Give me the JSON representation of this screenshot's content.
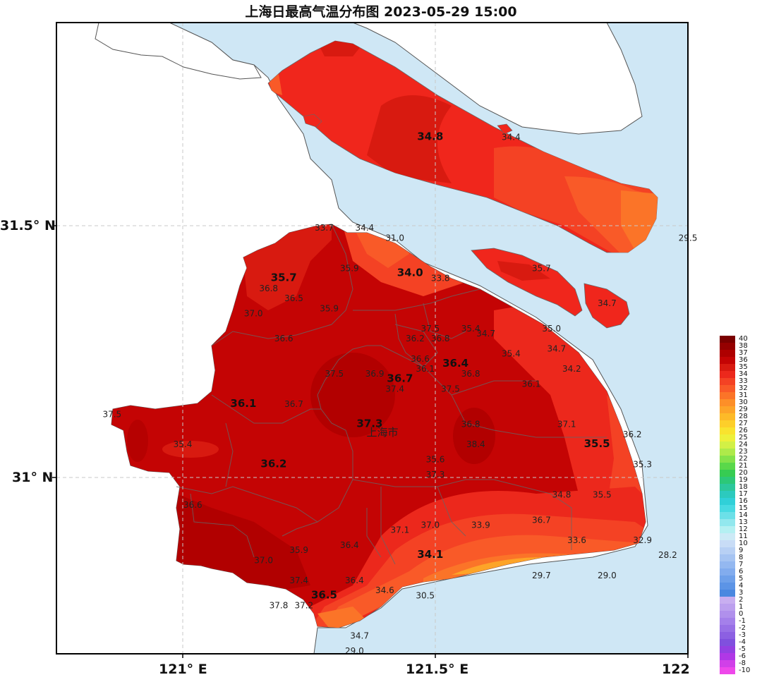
{
  "title": "上海日最高气温分布图 2023-05-29 15:00",
  "axes": {
    "lat_labels": [
      "31.5° N",
      "31° N"
    ],
    "lon_labels": [
      "121° E",
      "121.5° E",
      "122"
    ]
  },
  "city_label": "上海市",
  "stations": [
    {
      "v": "34.8",
      "big": true,
      "lon": 121.49,
      "lat": 31.67
    },
    {
      "v": "34.4",
      "lon": 121.65,
      "lat": 31.67
    },
    {
      "v": "33.7",
      "lon": 121.28,
      "lat": 31.49
    },
    {
      "v": "34.4",
      "lon": 121.36,
      "lat": 31.49
    },
    {
      "v": "31.0",
      "lon": 121.42,
      "lat": 31.47
    },
    {
      "v": "29.5",
      "lon": 122.0,
      "lat": 31.47
    },
    {
      "v": "35.9",
      "lon": 121.33,
      "lat": 31.41
    },
    {
      "v": "34.0",
      "big": true,
      "lon": 121.45,
      "lat": 31.4
    },
    {
      "v": "33.8",
      "lon": 121.51,
      "lat": 31.39
    },
    {
      "v": "35.7",
      "lon": 121.71,
      "lat": 31.41
    },
    {
      "v": "35.7",
      "big": true,
      "lon": 121.2,
      "lat": 31.39
    },
    {
      "v": "36.8",
      "lon": 121.17,
      "lat": 31.37
    },
    {
      "v": "36.5",
      "lon": 121.22,
      "lat": 31.35
    },
    {
      "v": "35.9",
      "lon": 121.29,
      "lat": 31.33
    },
    {
      "v": "34.7",
      "lon": 121.84,
      "lat": 31.34
    },
    {
      "v": "37.0",
      "lon": 121.14,
      "lat": 31.32
    },
    {
      "v": "37.5",
      "lon": 121.49,
      "lat": 31.29
    },
    {
      "v": "35.4",
      "lon": 121.57,
      "lat": 31.29
    },
    {
      "v": "35.0",
      "lon": 121.73,
      "lat": 31.29
    },
    {
      "v": "36.2",
      "lon": 121.46,
      "lat": 31.27
    },
    {
      "v": "36.8",
      "lon": 121.51,
      "lat": 31.27
    },
    {
      "v": "34.7",
      "lon": 121.6,
      "lat": 31.28
    },
    {
      "v": "36.6",
      "lon": 121.2,
      "lat": 31.27
    },
    {
      "v": "34.7",
      "lon": 121.74,
      "lat": 31.25
    },
    {
      "v": "35.4",
      "lon": 121.65,
      "lat": 31.24
    },
    {
      "v": "36.6",
      "lon": 121.47,
      "lat": 31.23
    },
    {
      "v": "36.4",
      "big": true,
      "lon": 121.54,
      "lat": 31.22
    },
    {
      "v": "34.2",
      "lon": 121.77,
      "lat": 31.21
    },
    {
      "v": "36.1",
      "lon": 121.48,
      "lat": 31.21
    },
    {
      "v": "36.8",
      "lon": 121.57,
      "lat": 31.2
    },
    {
      "v": "37.5",
      "lon": 121.3,
      "lat": 31.2
    },
    {
      "v": "36.9",
      "lon": 121.38,
      "lat": 31.2
    },
    {
      "v": "36.7",
      "big": true,
      "lon": 121.43,
      "lat": 31.19
    },
    {
      "v": "36.1",
      "lon": 121.69,
      "lat": 31.18
    },
    {
      "v": "37.5",
      "lon": 121.53,
      "lat": 31.17
    },
    {
      "v": "37.4",
      "lon": 121.42,
      "lat": 31.17
    },
    {
      "v": "36.1",
      "big": true,
      "lon": 121.12,
      "lat": 31.14
    },
    {
      "v": "36.7",
      "lon": 121.22,
      "lat": 31.14
    },
    {
      "v": "37.5",
      "lon": 120.86,
      "lat": 31.12
    },
    {
      "v": "37.3",
      "big": true,
      "lon": 121.37,
      "lat": 31.1
    },
    {
      "v": "36.8",
      "lon": 121.57,
      "lat": 31.1
    },
    {
      "v": "37.1",
      "lon": 121.76,
      "lat": 31.1
    },
    {
      "v": "38.4",
      "lon": 121.58,
      "lat": 31.06
    },
    {
      "v": "35.5",
      "big": true,
      "lon": 121.82,
      "lat": 31.06
    },
    {
      "v": "36.2",
      "lon": 121.89,
      "lat": 31.08
    },
    {
      "v": "35.4",
      "lon": 121.0,
      "lat": 31.06
    },
    {
      "v": "35.6",
      "lon": 121.5,
      "lat": 31.03
    },
    {
      "v": "36.2",
      "big": true,
      "lon": 121.18,
      "lat": 31.02
    },
    {
      "v": "35.3",
      "lon": 121.91,
      "lat": 31.02
    },
    {
      "v": "37.3",
      "lon": 121.5,
      "lat": 31.0
    },
    {
      "v": "34.8",
      "lon": 121.75,
      "lat": 30.96
    },
    {
      "v": "35.5",
      "lon": 121.83,
      "lat": 30.96
    },
    {
      "v": "36.6",
      "lon": 121.02,
      "lat": 30.94
    },
    {
      "v": "36.7",
      "lon": 121.71,
      "lat": 30.91
    },
    {
      "v": "33.9",
      "lon": 121.59,
      "lat": 30.9
    },
    {
      "v": "37.0",
      "lon": 121.49,
      "lat": 30.9
    },
    {
      "v": "37.1",
      "lon": 121.43,
      "lat": 30.89
    },
    {
      "v": "33.6",
      "lon": 121.78,
      "lat": 30.87
    },
    {
      "v": "32.9",
      "lon": 121.91,
      "lat": 30.87
    },
    {
      "v": "35.9",
      "lon": 121.23,
      "lat": 30.85
    },
    {
      "v": "36.4",
      "lon": 121.33,
      "lat": 30.86
    },
    {
      "v": "34.1",
      "big": true,
      "lon": 121.49,
      "lat": 30.84
    },
    {
      "v": "28.2",
      "lon": 121.96,
      "lat": 30.84
    },
    {
      "v": "37.0",
      "lon": 121.16,
      "lat": 30.83
    },
    {
      "v": "29.7",
      "lon": 121.71,
      "lat": 30.8
    },
    {
      "v": "29.0",
      "lon": 121.84,
      "lat": 30.8
    },
    {
      "v": "36.4",
      "lon": 121.34,
      "lat": 30.79
    },
    {
      "v": "37.4",
      "lon": 121.23,
      "lat": 30.79
    },
    {
      "v": "34.6",
      "lon": 121.4,
      "lat": 30.77
    },
    {
      "v": "36.5",
      "big": true,
      "lon": 121.28,
      "lat": 30.76
    },
    {
      "v": "30.5",
      "lon": 121.48,
      "lat": 30.76
    },
    {
      "v": "37.8",
      "lon": 121.19,
      "lat": 30.74
    },
    {
      "v": "37.2",
      "lon": 121.24,
      "lat": 30.74
    },
    {
      "v": "34.7",
      "lon": 121.35,
      "lat": 30.68
    },
    {
      "v": "29.0",
      "lon": 121.34,
      "lat": 30.65
    }
  ],
  "legend": {
    "levels": [
      "40",
      "38",
      "37",
      "36",
      "35",
      "34",
      "33",
      "32",
      "31",
      "30",
      "29",
      "28",
      "27",
      "26",
      "25",
      "24",
      "23",
      "22",
      "21",
      "20",
      "19",
      "18",
      "17",
      "16",
      "15",
      "14",
      "13",
      "12",
      "11",
      "10",
      "9",
      "8",
      "7",
      "6",
      "5",
      "4",
      "3",
      "2",
      "1",
      "0",
      "-1",
      "-2",
      "-3",
      "-4",
      "-5",
      "-6",
      "-8",
      "-10"
    ],
    "colors": [
      "#7a0000",
      "#950000",
      "#ae0000",
      "#c40404",
      "#d81a10",
      "#ec281c",
      "#f44224",
      "#f95a28",
      "#fb7428",
      "#fd8f28",
      "#fda428",
      "#fdba28",
      "#fdcf2a",
      "#f9e32e",
      "#eef03a",
      "#d2f046",
      "#aeea4a",
      "#84e24a",
      "#5ad84a",
      "#36cc52",
      "#2cc878",
      "#2cc89c",
      "#2ccabe",
      "#30d0d8",
      "#48dae2",
      "#6ce0e8",
      "#92e8ee",
      "#b4f0f2",
      "#cceaf6",
      "#c8dcf6",
      "#b8d0f4",
      "#a6c4f2",
      "#94b8f0",
      "#82acee",
      "#6ea0ea",
      "#5c94e6",
      "#4a88e0",
      "#c8aef0",
      "#bca0ee",
      "#b090ec",
      "#a480ea",
      "#9870e6",
      "#8c60e2",
      "#8050de",
      "#9440e2",
      "#b038e6",
      "#d040e8",
      "#ee48ea"
    ]
  },
  "colors": {
    "sea": "#cfe7f5",
    "land_outside": "#ffffff",
    "coast_line": "#555555",
    "district_line": "#666666"
  }
}
